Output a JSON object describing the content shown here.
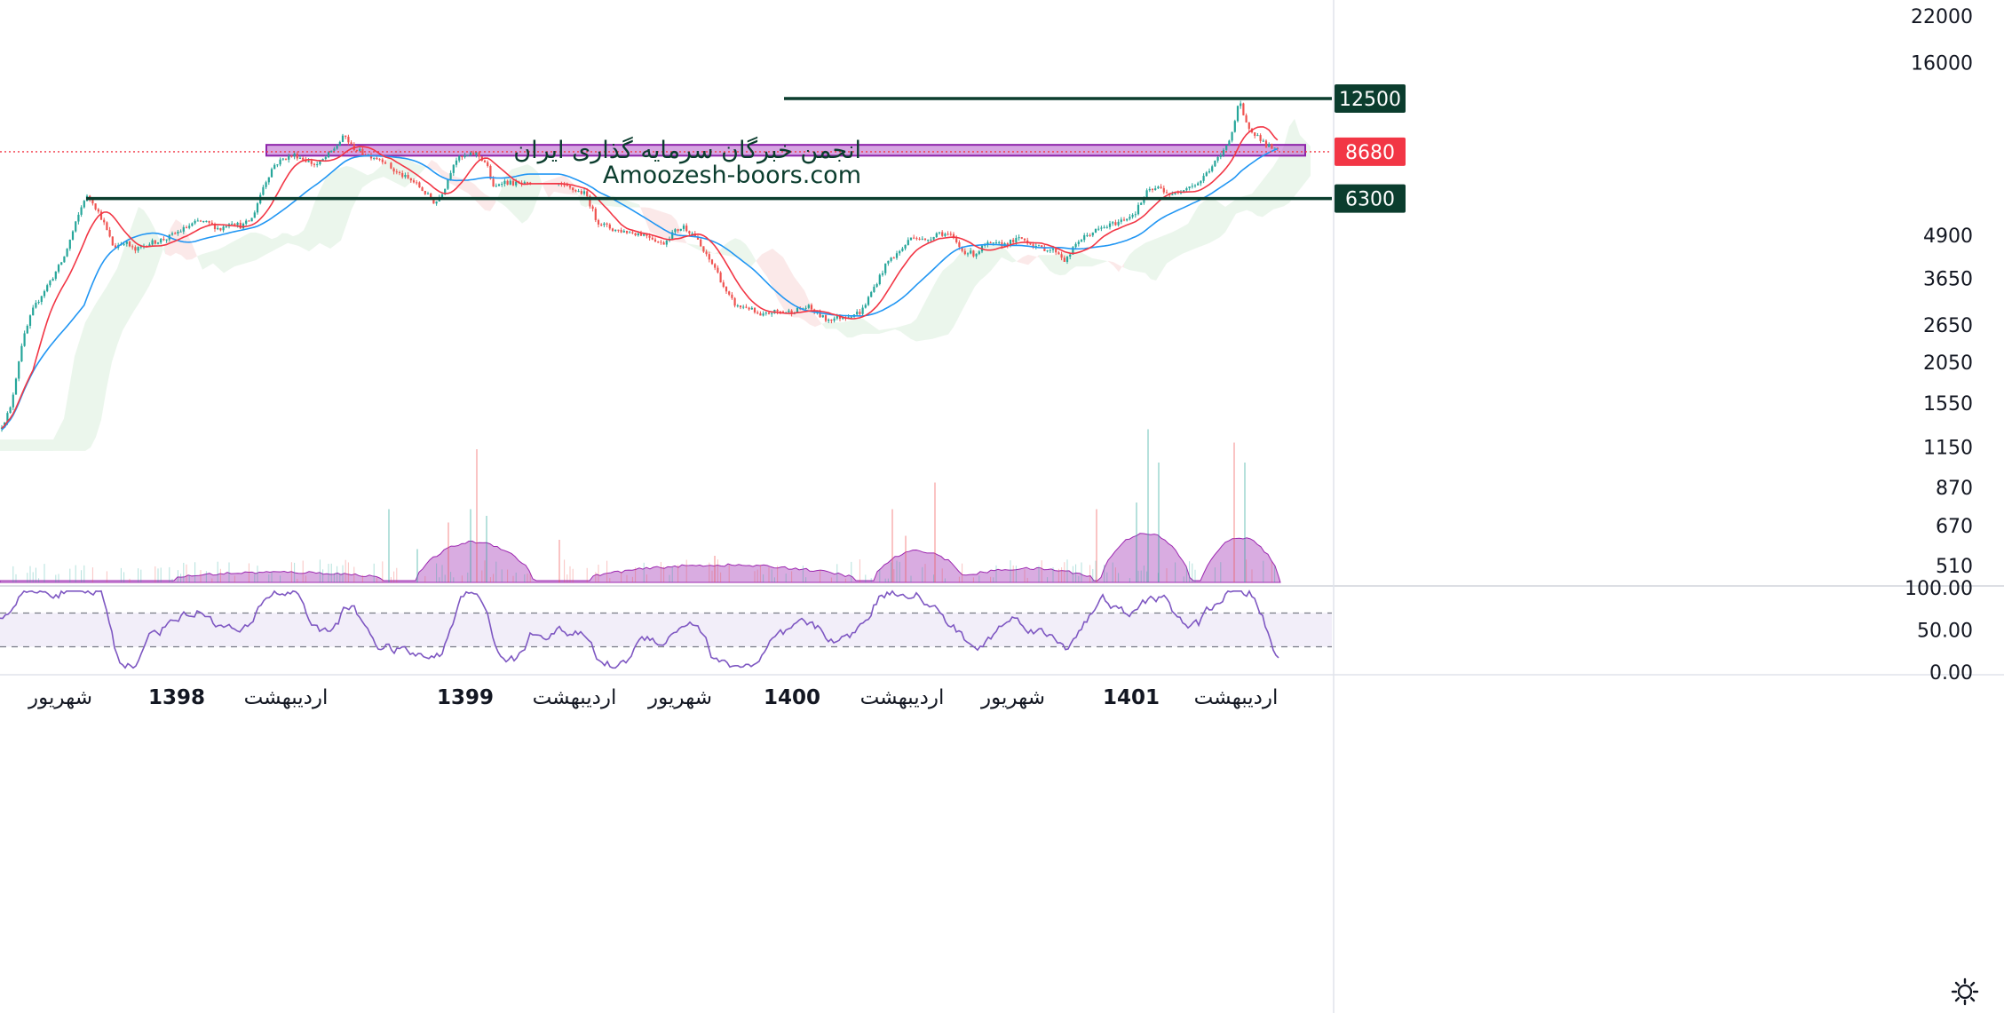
{
  "watermark": {
    "line1": "انجمن خبرگان سرمایه گذاری ایران",
    "line2": "Amoozesh-boors.com"
  },
  "chart_data": {
    "type": "candlestick",
    "price_axis": {
      "scale": "log",
      "ticks": [
        22000,
        16000,
        12500,
        8680,
        6300,
        4900,
        3650,
        2650,
        2050,
        1550,
        1150,
        870,
        670,
        510
      ],
      "range": [
        380,
        25000
      ]
    },
    "horizontal_lines": [
      {
        "price": 12500,
        "label": "12500",
        "color": "#0b3d2e"
      },
      {
        "price": 6300,
        "label": "6300",
        "color": "#0b3d2e"
      }
    ],
    "current_price": {
      "price": 8680,
      "label": "8680",
      "color": "#f23645"
    },
    "resistance_zone": {
      "low": 8450,
      "high": 9100,
      "color": "#b55bcb"
    },
    "price_series": [
      [
        0,
        1300
      ],
      [
        12,
        1500
      ],
      [
        24,
        2300
      ],
      [
        36,
        2900
      ],
      [
        48,
        3300
      ],
      [
        60,
        3700
      ],
      [
        72,
        4200
      ],
      [
        84,
        5200
      ],
      [
        96,
        6400
      ],
      [
        104,
        6200
      ],
      [
        116,
        5400
      ],
      [
        128,
        4500
      ],
      [
        140,
        4700
      ],
      [
        152,
        4400
      ],
      [
        164,
        4600
      ],
      [
        176,
        4700
      ],
      [
        188,
        4800
      ],
      [
        200,
        5000
      ],
      [
        212,
        5200
      ],
      [
        224,
        5400
      ],
      [
        236,
        5300
      ],
      [
        248,
        5100
      ],
      [
        260,
        5400
      ],
      [
        272,
        5200
      ],
      [
        284,
        5500
      ],
      [
        296,
        6800
      ],
      [
        308,
        7900
      ],
      [
        320,
        8300
      ],
      [
        332,
        8500
      ],
      [
        344,
        8200
      ],
      [
        356,
        7900
      ],
      [
        368,
        8400
      ],
      [
        380,
        9100
      ],
      [
        388,
        9700
      ],
      [
        396,
        9000
      ],
      [
        408,
        8600
      ],
      [
        420,
        8400
      ],
      [
        432,
        8200
      ],
      [
        444,
        7600
      ],
      [
        456,
        7300
      ],
      [
        468,
        7000
      ],
      [
        480,
        6500
      ],
      [
        490,
        6100
      ],
      [
        500,
        6700
      ],
      [
        512,
        8200
      ],
      [
        524,
        8400
      ],
      [
        536,
        8600
      ],
      [
        548,
        8000
      ],
      [
        556,
        6700
      ],
      [
        564,
        7100
      ],
      [
        576,
        7000
      ],
      [
        600,
        6900
      ],
      [
        630,
        6900
      ],
      [
        660,
        6500
      ],
      [
        672,
        5400
      ],
      [
        690,
        5100
      ],
      [
        710,
        5000
      ],
      [
        730,
        4900
      ],
      [
        746,
        4600
      ],
      [
        758,
        5000
      ],
      [
        770,
        5200
      ],
      [
        782,
        4900
      ],
      [
        794,
        4300
      ],
      [
        806,
        3900
      ],
      [
        818,
        3300
      ],
      [
        830,
        3000
      ],
      [
        842,
        3000
      ],
      [
        856,
        2800
      ],
      [
        870,
        2900
      ],
      [
        890,
        2900
      ],
      [
        910,
        3000
      ],
      [
        930,
        2750
      ],
      [
        950,
        2800
      ],
      [
        970,
        2900
      ],
      [
        986,
        3500
      ],
      [
        1000,
        4100
      ],
      [
        1014,
        4400
      ],
      [
        1028,
        4900
      ],
      [
        1042,
        4700
      ],
      [
        1056,
        5000
      ],
      [
        1070,
        4900
      ],
      [
        1084,
        4400
      ],
      [
        1098,
        4300
      ],
      [
        1110,
        4600
      ],
      [
        1130,
        4600
      ],
      [
        1150,
        4800
      ],
      [
        1170,
        4500
      ],
      [
        1190,
        4400
      ],
      [
        1200,
        4100
      ],
      [
        1214,
        4700
      ],
      [
        1230,
        5000
      ],
      [
        1246,
        5200
      ],
      [
        1262,
        5400
      ],
      [
        1278,
        5700
      ],
      [
        1292,
        6600
      ],
      [
        1306,
        6800
      ],
      [
        1320,
        6400
      ],
      [
        1334,
        6800
      ],
      [
        1350,
        7000
      ],
      [
        1364,
        7800
      ],
      [
        1378,
        8700
      ],
      [
        1388,
        10000
      ],
      [
        1396,
        12300
      ],
      [
        1402,
        10600
      ],
      [
        1414,
        9800
      ],
      [
        1426,
        9100
      ],
      [
        1440,
        8680
      ]
    ],
    "volume_axis_max": 1.0,
    "volume_spikes": [
      [
        438,
        0.55
      ],
      [
        470,
        0.25
      ],
      [
        505,
        0.45
      ],
      [
        530,
        0.55
      ],
      [
        537,
        1.0
      ],
      [
        548,
        0.5
      ],
      [
        630,
        0.32
      ],
      [
        805,
        0.2
      ],
      [
        1005,
        0.55
      ],
      [
        1020,
        0.35
      ],
      [
        1053,
        0.75
      ],
      [
        1235,
        0.55
      ],
      [
        1280,
        0.6
      ],
      [
        1293,
        1.15
      ],
      [
        1305,
        0.9
      ],
      [
        1390,
        1.05
      ],
      [
        1402,
        0.9
      ]
    ],
    "rsi": {
      "ticks": [
        "100.00",
        "50.00",
        "0.00"
      ],
      "upper_band": 70,
      "lower_band": 30,
      "color": "#7e57c2"
    },
    "time_labels": [
      {
        "x": 68,
        "text": "شهریور",
        "bold": false
      },
      {
        "x": 199,
        "text": "1398",
        "bold": true
      },
      {
        "x": 322,
        "text": "اردیبهشت",
        "bold": false
      },
      {
        "x": 524,
        "text": "1399",
        "bold": true
      },
      {
        "x": 647,
        "text": "اردیبهشت",
        "bold": false
      },
      {
        "x": 766,
        "text": "شهریور",
        "bold": false
      },
      {
        "x": 892,
        "text": "1400",
        "bold": true
      },
      {
        "x": 1016,
        "text": "اردیبهشت",
        "bold": false
      },
      {
        "x": 1141,
        "text": "شهریور",
        "bold": false
      },
      {
        "x": 1274,
        "text": "1401",
        "bold": true
      },
      {
        "x": 1392,
        "text": "اردیبهشت",
        "bold": false
      }
    ],
    "colors": {
      "up": "#26a69a",
      "down": "#ef5350",
      "ma_fast": "#f23645",
      "ma_slow": "#2196f3",
      "cloud_bull": "#a5d6a7",
      "cloud_bear": "#ef9a9a",
      "volume_area": "#ba68c8",
      "level_line": "#0b3d2e"
    },
    "settings_icon": "gear-icon"
  }
}
